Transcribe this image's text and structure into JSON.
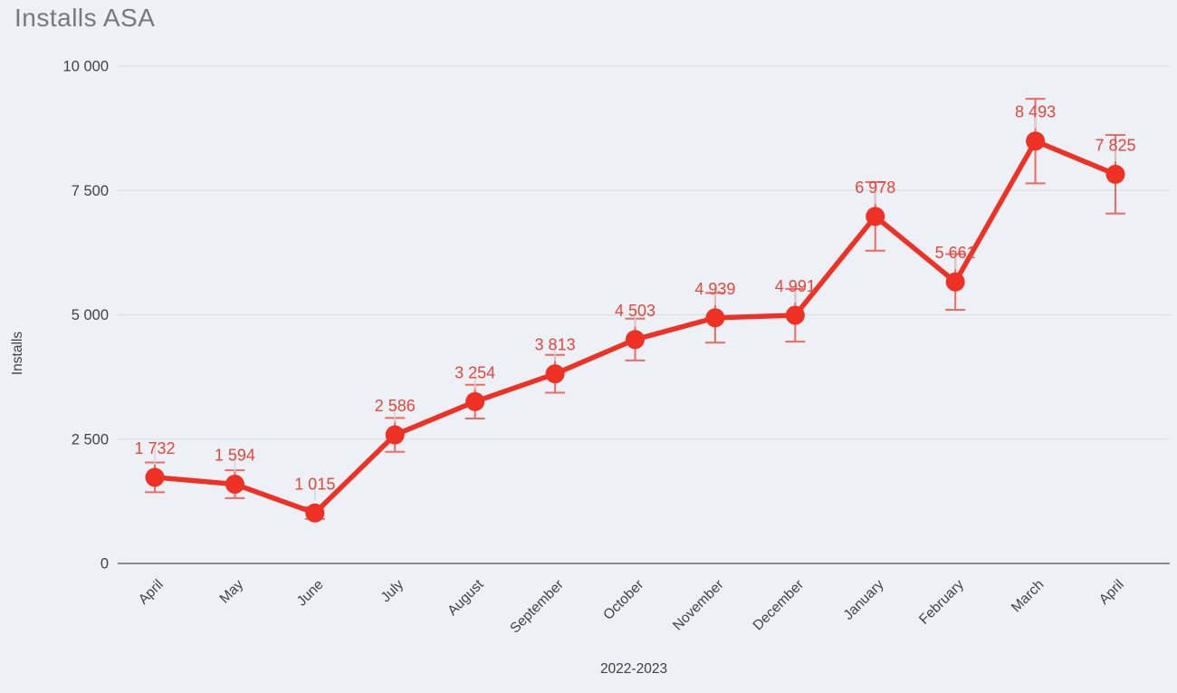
{
  "chart_data": {
    "type": "line",
    "title": "Installs ASA",
    "xlabel": "2022-2023",
    "ylabel": "Installs",
    "categories": [
      "April",
      "May",
      "June",
      "July",
      "August",
      "September",
      "October",
      "November",
      "December",
      "January",
      "February",
      "March",
      "April"
    ],
    "values": [
      1732,
      1594,
      1015,
      2586,
      3254,
      3813,
      4503,
      4939,
      4991,
      6978,
      5661,
      8493,
      7825
    ],
    "value_labels": [
      "1 732",
      "1 594",
      "1 015",
      "2 586",
      "3 254",
      "3 813",
      "4 503",
      "4 939",
      "4 991",
      "6 978",
      "5 661",
      "8 493",
      "7 825"
    ],
    "error_bars": [
      300,
      280,
      120,
      340,
      340,
      380,
      420,
      500,
      530,
      690,
      560,
      850,
      790
    ],
    "ylim": [
      0,
      10000
    ],
    "yticks": [
      0,
      2500,
      5000,
      7500,
      10000
    ],
    "ytick_labels": [
      "0",
      "2 500",
      "5 000",
      "7 500",
      "10 000"
    ],
    "grid": "horizontal",
    "legend": "none",
    "series_name": "Installs",
    "colors": {
      "background": "#edf0f5",
      "line": "#ee3124",
      "point": "#ee3124",
      "value_label": "#e8463b",
      "error_bar": "#ef5349",
      "label_connector": "#d3d7dd",
      "grid": "#d9dce1",
      "axis": "#878c91",
      "title": "#75787c",
      "tick_text": "#3e4347",
      "axis_title_text": "#3c4043"
    }
  }
}
